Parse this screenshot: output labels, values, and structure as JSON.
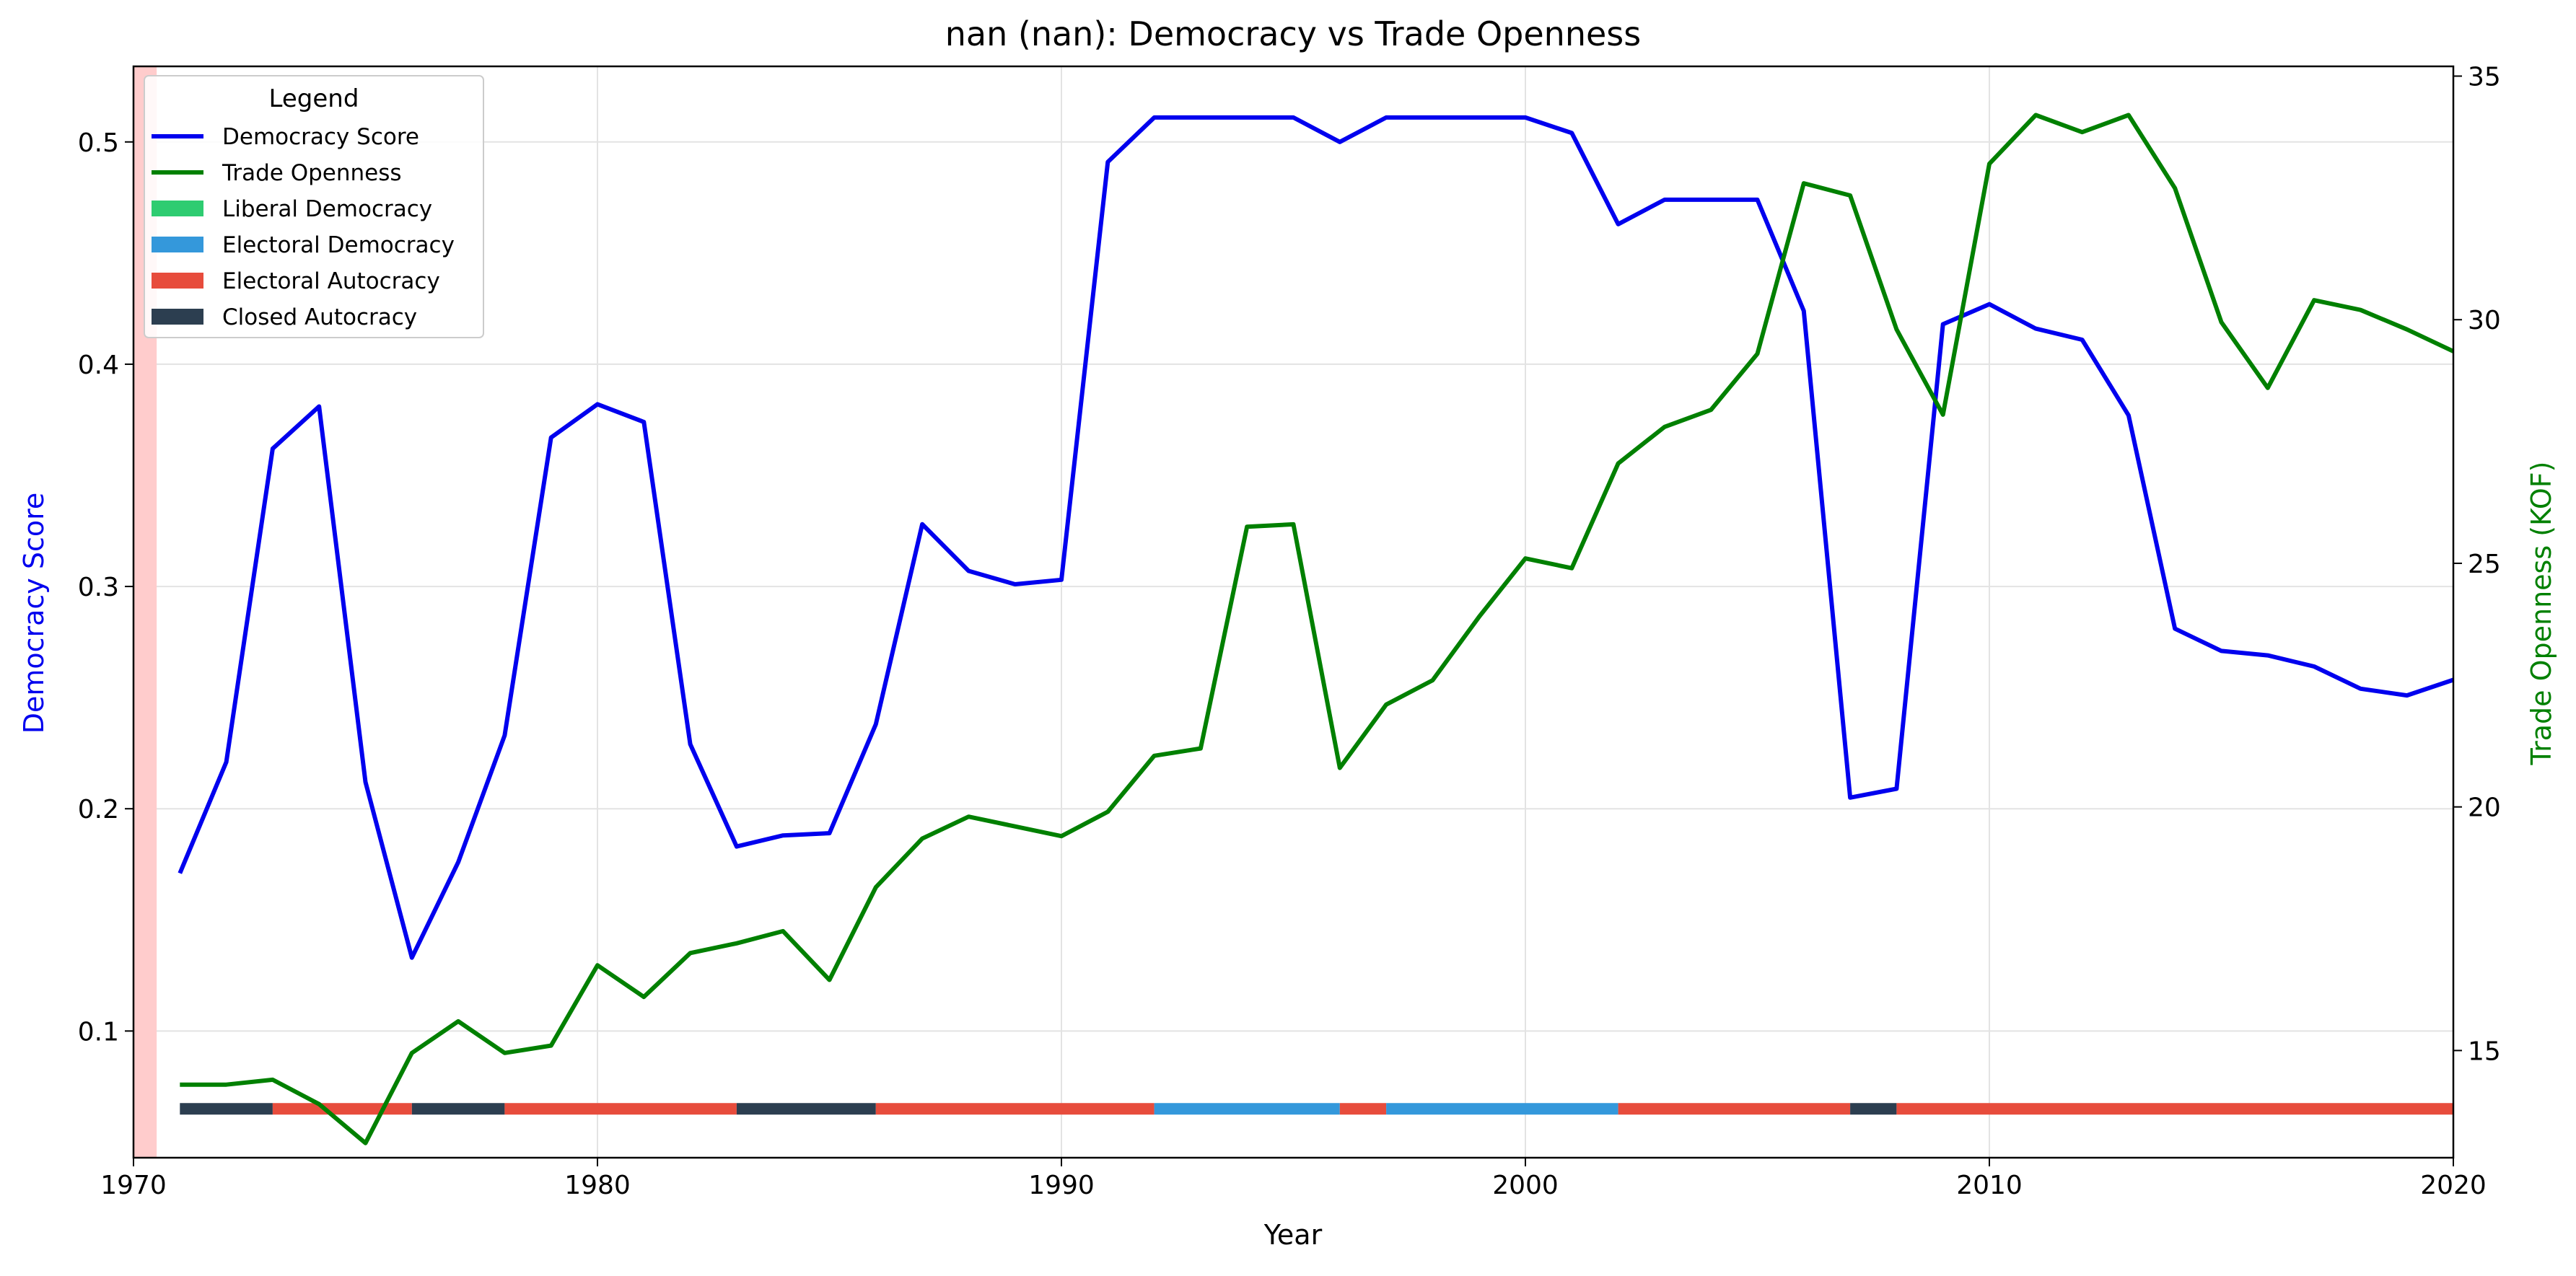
{
  "chart_data": {
    "type": "line",
    "title": "nan (nan): Democracy vs Trade Openness",
    "xlabel": "Year",
    "ylabel_left": "Democracy Score",
    "ylabel_right": "Trade Openness (KOF)",
    "xlim": [
      1970,
      2020
    ],
    "ylim_left": [
      0.043,
      0.534
    ],
    "ylim_right": [
      12.8,
      35.2
    ],
    "x_ticks": [
      1970,
      1980,
      1990,
      2000,
      2010,
      2020
    ],
    "y_left_ticks": [
      0.1,
      0.2,
      0.3,
      0.4,
      0.5
    ],
    "y_left_tick_labels": [
      "0.1",
      "0.2",
      "0.3",
      "0.4",
      "0.5"
    ],
    "y_right_ticks": [
      15,
      20,
      25,
      30,
      35
    ],
    "grid": true,
    "legend_position": "top-left",
    "legend_title": "Legend",
    "x": [
      1971,
      1972,
      1973,
      1974,
      1975,
      1976,
      1977,
      1978,
      1979,
      1980,
      1981,
      1982,
      1983,
      1984,
      1985,
      1986,
      1987,
      1988,
      1989,
      1990,
      1991,
      1992,
      1993,
      1994,
      1995,
      1996,
      1997,
      1998,
      1999,
      2000,
      2001,
      2002,
      2003,
      2004,
      2005,
      2006,
      2007,
      2008,
      2009,
      2010,
      2011,
      2012,
      2013,
      2014,
      2015,
      2016,
      2017,
      2018,
      2019,
      2020
    ],
    "series": [
      {
        "name": "Democracy Score",
        "axis": "left",
        "color": "#0000ee",
        "values": [
          0.171,
          0.221,
          0.362,
          0.381,
          0.212,
          0.133,
          0.176,
          0.233,
          0.367,
          0.382,
          0.374,
          0.229,
          0.183,
          0.188,
          0.189,
          0.238,
          0.328,
          0.307,
          0.301,
          0.303,
          0.491,
          0.511,
          0.511,
          0.511,
          0.511,
          0.5,
          0.511,
          0.511,
          0.511,
          0.511,
          0.504,
          0.463,
          0.474,
          0.474,
          0.474,
          0.424,
          0.205,
          0.209,
          0.418,
          0.427,
          0.416,
          0.411,
          0.377,
          0.281,
          0.271,
          0.269,
          0.264,
          0.254,
          0.251,
          0.258
        ]
      },
      {
        "name": "Trade Openness",
        "axis": "right",
        "color": "#008000",
        "values": [
          14.3,
          14.3,
          14.4,
          13.9,
          13.1,
          14.95,
          15.6,
          14.95,
          15.1,
          16.75,
          16.1,
          17.0,
          17.2,
          17.45,
          16.45,
          18.35,
          19.35,
          19.8,
          19.6,
          19.4,
          19.9,
          21.05,
          21.2,
          25.75,
          25.8,
          20.8,
          22.1,
          22.6,
          23.9,
          25.1,
          24.9,
          27.05,
          27.8,
          28.15,
          29.3,
          32.8,
          32.55,
          29.8,
          28.05,
          33.2,
          34.2,
          33.85,
          34.2,
          32.7,
          29.95,
          28.6,
          30.4,
          30.2,
          29.8,
          29.35
        ]
      }
    ],
    "regime_categories": [
      {
        "name": "Liberal Democracy",
        "color": "#2ecc71"
      },
      {
        "name": "Electoral Democracy",
        "color": "#3498db"
      },
      {
        "name": "Electoral Autocracy",
        "color": "#e74c3c"
      },
      {
        "name": "Closed Autocracy",
        "color": "#2c3e50"
      }
    ],
    "regime_bar_level": 0.065,
    "regime_segments": [
      {
        "start": 1971,
        "end": 1973,
        "regime": "Closed Autocracy"
      },
      {
        "start": 1973,
        "end": 1976,
        "regime": "Electoral Autocracy"
      },
      {
        "start": 1976,
        "end": 1978,
        "regime": "Closed Autocracy"
      },
      {
        "start": 1978,
        "end": 1983,
        "regime": "Electoral Autocracy"
      },
      {
        "start": 1983,
        "end": 1986,
        "regime": "Closed Autocracy"
      },
      {
        "start": 1986,
        "end": 1992,
        "regime": "Electoral Autocracy"
      },
      {
        "start": 1992,
        "end": 1996,
        "regime": "Electoral Democracy"
      },
      {
        "start": 1996,
        "end": 1997,
        "regime": "Electoral Autocracy"
      },
      {
        "start": 1997,
        "end": 2002,
        "regime": "Electoral Democracy"
      },
      {
        "start": 2002,
        "end": 2007,
        "regime": "Electoral Autocracy"
      },
      {
        "start": 2007,
        "end": 2008,
        "regime": "Closed Autocracy"
      },
      {
        "start": 2008,
        "end": 2020,
        "regime": "Electoral Autocracy"
      }
    ],
    "shaded_span": {
      "start": 1970,
      "end": 1970.5,
      "color": "#ffcccc"
    }
  }
}
